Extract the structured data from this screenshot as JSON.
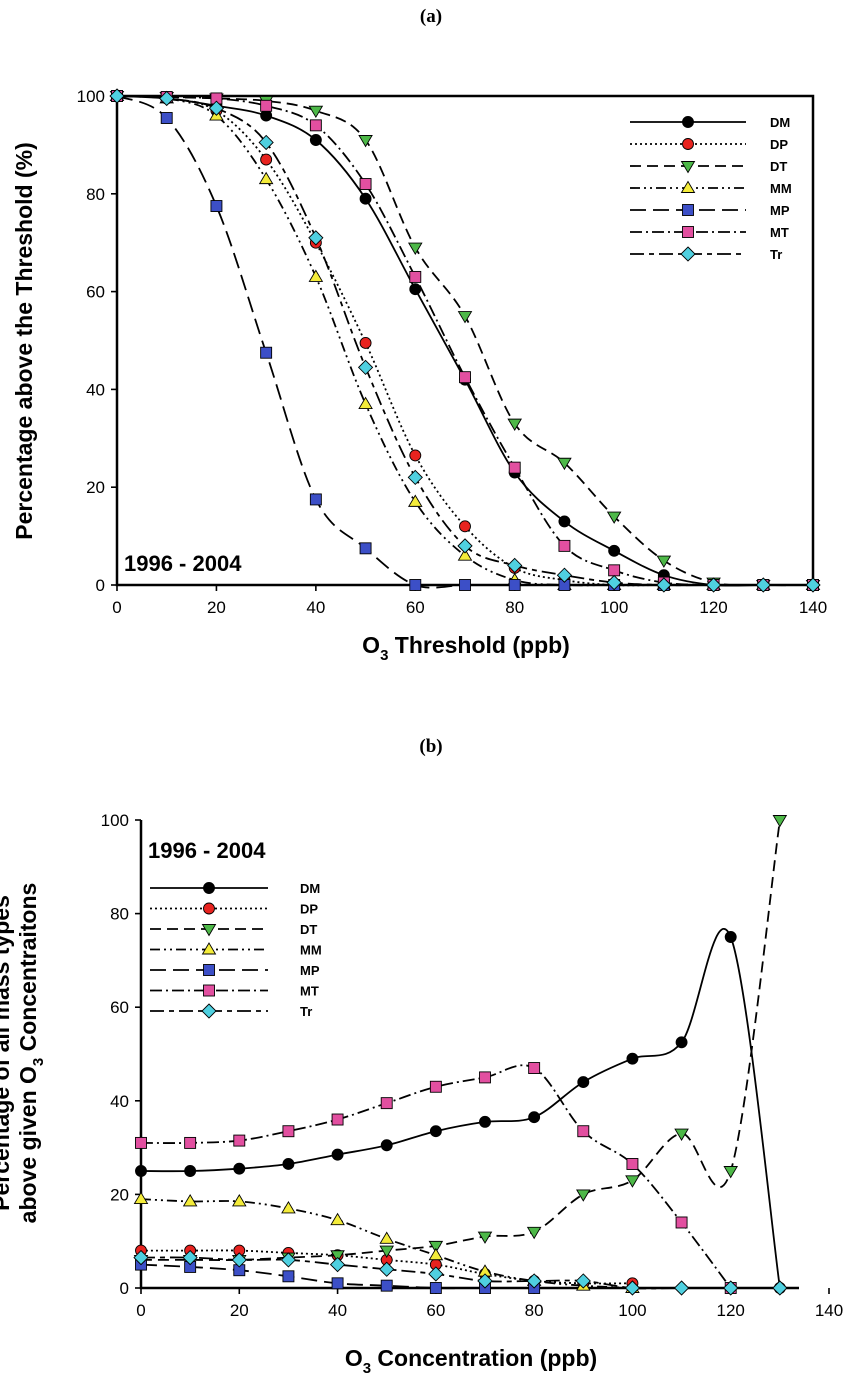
{
  "chart_data": [
    {
      "type": "line",
      "panel_label": "(a)",
      "xlabel_main": "O",
      "xlabel_sub": "3",
      "xlabel_rest": " Threshold (ppb)",
      "ylabel": "Percentage above the Threshold (%)",
      "annotation": "1996 - 2004",
      "xlim": [
        0,
        140
      ],
      "ylim": [
        0,
        100
      ],
      "xticks": [
        0,
        20,
        40,
        60,
        80,
        100,
        120,
        140
      ],
      "yticks": [
        0,
        20,
        40,
        60,
        80,
        100
      ],
      "legend_position": "top-right",
      "x": [
        0,
        10,
        20,
        30,
        40,
        50,
        60,
        70,
        80,
        90,
        100,
        110,
        120,
        130,
        140
      ],
      "series": [
        {
          "name": "DM",
          "marker": "circle",
          "color": "#000000",
          "dash": "solid",
          "values": [
            100,
            99.5,
            98,
            96,
            91,
            79,
            60.5,
            42,
            23,
            13,
            7,
            2,
            0,
            0,
            0
          ]
        },
        {
          "name": "DP",
          "marker": "circle",
          "color": "#e8231f",
          "dash": "dot",
          "values": [
            100,
            99.5,
            97,
            87,
            70,
            49.5,
            26.5,
            12,
            3.5,
            1,
            0,
            0,
            0,
            0,
            0
          ]
        },
        {
          "name": "DT",
          "marker": "triangle-down",
          "color": "#4db848",
          "dash": "dash",
          "values": [
            100,
            99.8,
            99.5,
            99,
            97,
            91,
            69,
            55,
            33,
            25,
            14,
            5,
            0.5,
            0,
            0
          ]
        },
        {
          "name": "MM",
          "marker": "triangle-up",
          "color": "#f4ec3a",
          "dash": "dashdotdot",
          "values": [
            100,
            99.5,
            96,
            83,
            63,
            37,
            17,
            6,
            1,
            0,
            0,
            0,
            0,
            0,
            0
          ]
        },
        {
          "name": "MP",
          "marker": "square",
          "color": "#3c4fc7",
          "dash": "longdash",
          "values": [
            100,
            95.5,
            77.5,
            47.5,
            17.5,
            7.5,
            0,
            0,
            0,
            0,
            0,
            0,
            0,
            0,
            0
          ]
        },
        {
          "name": "MT",
          "marker": "square",
          "color": "#e24fa0",
          "dash": "dashdot",
          "values": [
            100,
            99.8,
            99.5,
            98,
            94,
            82,
            63,
            42.5,
            24,
            8,
            3,
            0.5,
            0,
            0,
            0
          ]
        },
        {
          "name": "Tr",
          "marker": "diamond",
          "color": "#4fd0e0",
          "dash": "longdashshort",
          "values": [
            100,
            99.5,
            97.5,
            90.5,
            71,
            44.5,
            22,
            8,
            4,
            2,
            0.5,
            0,
            0,
            0,
            0
          ]
        }
      ]
    },
    {
      "type": "line",
      "panel_label": "(b)",
      "xlabel_main": "O",
      "xlabel_sub": "3",
      "xlabel_rest": " Concentration (ppb)",
      "ylabel_line1": "Percentage of all mass types",
      "ylabel_line2_main": "above given O",
      "ylabel_line2_sub": "3",
      "ylabel_line2_rest": " Concentraitons",
      "annotation": "1996 - 2004",
      "xlim": [
        0,
        140
      ],
      "ylim": [
        0,
        100
      ],
      "xticks": [
        0,
        20,
        40,
        60,
        80,
        100,
        120,
        140
      ],
      "yticks": [
        0,
        20,
        40,
        60,
        80,
        100
      ],
      "legend_position": "top-left",
      "series": [
        {
          "name": "DM",
          "marker": "circle",
          "color": "#000000",
          "dash": "solid",
          "x": [
            0,
            10,
            20,
            30,
            40,
            50,
            60,
            70,
            80,
            90,
            100,
            110,
            120,
            130
          ],
          "values": [
            25,
            25,
            25.5,
            26.5,
            28.5,
            30.5,
            33.5,
            35.5,
            36.5,
            44,
            49,
            52.5,
            75,
            0
          ]
        },
        {
          "name": "DP",
          "marker": "circle",
          "color": "#e8231f",
          "dash": "dot",
          "x": [
            0,
            10,
            20,
            30,
            40,
            50,
            60,
            70,
            80,
            90,
            100
          ],
          "values": [
            8,
            8,
            8,
            7.5,
            7,
            6,
            5,
            3,
            1.5,
            1,
            1
          ]
        },
        {
          "name": "DT",
          "marker": "triangle-down",
          "color": "#4db848",
          "dash": "dash",
          "x": [
            0,
            10,
            20,
            30,
            40,
            50,
            60,
            70,
            80,
            90,
            100,
            110,
            120,
            130
          ],
          "values": [
            6,
            6,
            6,
            6.5,
            7,
            8,
            9,
            11,
            12,
            20,
            23,
            33,
            25,
            100
          ]
        },
        {
          "name": "MM",
          "marker": "triangle-up",
          "color": "#f4ec3a",
          "dash": "dashdotdot",
          "x": [
            0,
            10,
            20,
            30,
            40,
            50,
            60,
            70,
            80,
            90,
            100
          ],
          "values": [
            19,
            18.5,
            18.5,
            17,
            14.5,
            10.5,
            7,
            3.5,
            1.5,
            0.5,
            0
          ]
        },
        {
          "name": "MP",
          "marker": "square",
          "color": "#3c4fc7",
          "dash": "longdash",
          "x": [
            0,
            10,
            20,
            30,
            40,
            50,
            60,
            70,
            80
          ],
          "values": [
            5,
            4.5,
            3.8,
            2.5,
            1,
            0.5,
            0,
            0,
            0
          ]
        },
        {
          "name": "MT",
          "marker": "square",
          "color": "#e24fa0",
          "dash": "dashdot",
          "x": [
            0,
            10,
            20,
            30,
            40,
            50,
            60,
            70,
            80,
            90,
            100,
            110,
            120
          ],
          "values": [
            31,
            31,
            31.5,
            33.5,
            36,
            39.5,
            43,
            45,
            47,
            33.5,
            26.5,
            14,
            0
          ]
        },
        {
          "name": "Tr",
          "marker": "diamond",
          "color": "#4fd0e0",
          "dash": "longdashshort",
          "x": [
            0,
            10,
            20,
            30,
            40,
            50,
            60,
            70,
            80,
            90,
            100,
            110,
            120,
            130
          ],
          "values": [
            6.5,
            6.5,
            6,
            6,
            5,
            4,
            3,
            1.5,
            1.5,
            1.5,
            0,
            0,
            0,
            0
          ]
        }
      ]
    }
  ]
}
